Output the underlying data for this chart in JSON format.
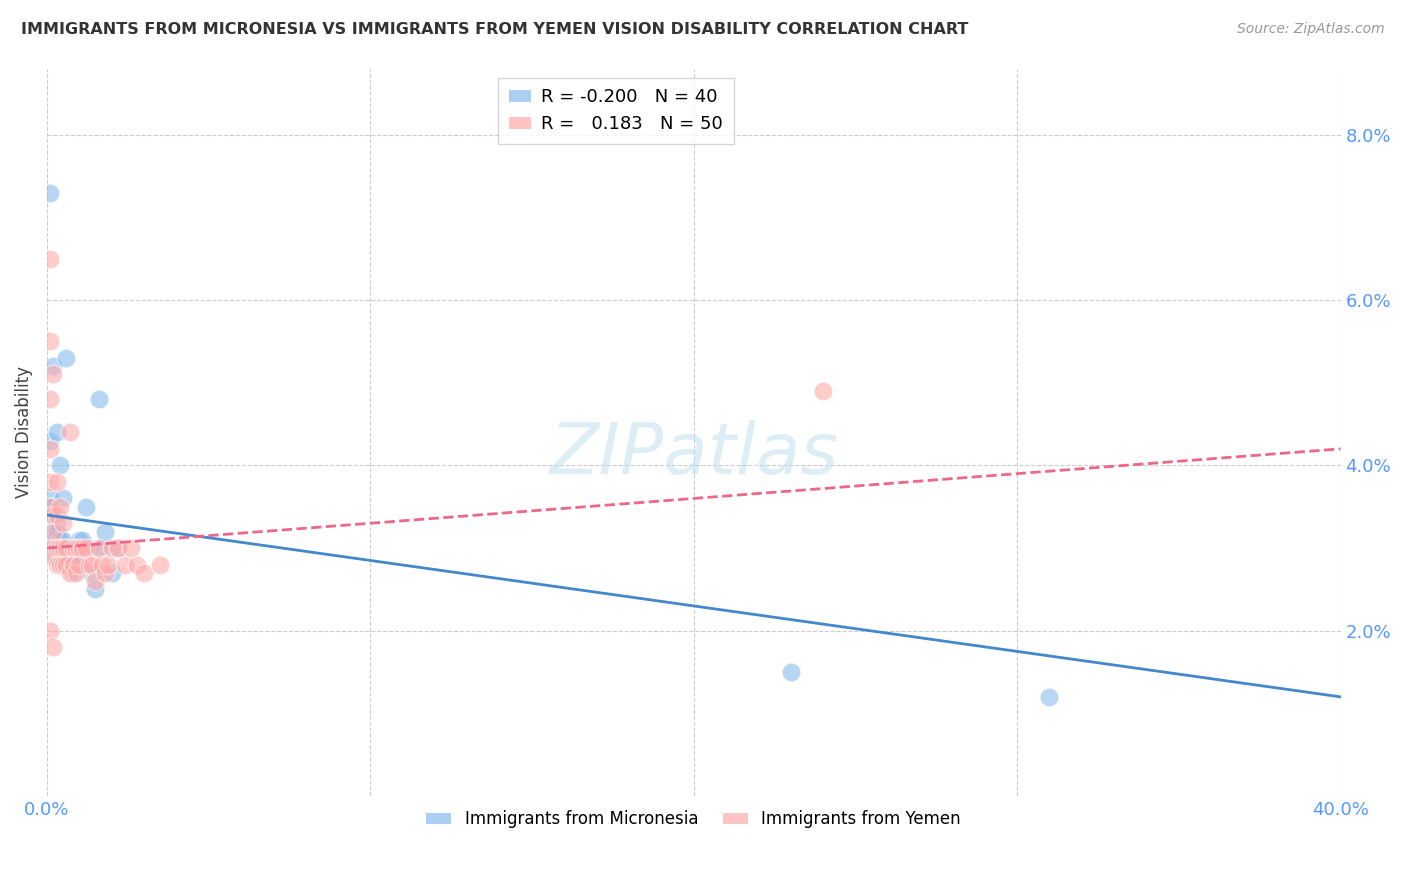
{
  "title": "IMMIGRANTS FROM MICRONESIA VS IMMIGRANTS FROM YEMEN VISION DISABILITY CORRELATION CHART",
  "source": "Source: ZipAtlas.com",
  "ylabel": "Vision Disability",
  "legend_micronesia": "Immigrants from Micronesia",
  "legend_yemen": "Immigrants from Yemen",
  "R_micronesia": "-0.200",
  "N_micronesia": "40",
  "R_yemen": "0.183",
  "N_yemen": "50",
  "color_micronesia": "#88BBEE",
  "color_yemen": "#FFAAAA",
  "trendline_color_micronesia": "#4488CC",
  "trendline_color_yemen": "#EE6688",
  "axis_color": "#5599FF",
  "grid_color": "#CCCCCC",
  "title_color": "#333333",
  "source_color": "#999999",
  "watermark_color": "#BBDDEE",
  "xlim": [
    0.0,
    0.4
  ],
  "ylim": [
    0.0,
    0.088
  ],
  "yticks": [
    0.02,
    0.04,
    0.06,
    0.08
  ],
  "ytick_labels": [
    "2.0%",
    "4.0%",
    "6.0%",
    "8.0%"
  ],
  "xticks": [
    0.0,
    0.1,
    0.2,
    0.3,
    0.4
  ],
  "xtick_labels": [
    "0.0%",
    "",
    "",
    "",
    "40.0%"
  ],
  "trendline_mic_x0": 0.0,
  "trendline_mic_y0": 0.034,
  "trendline_mic_x1": 0.4,
  "trendline_mic_y1": 0.012,
  "trendline_yem_x0": 0.0,
  "trendline_yem_y0": 0.03,
  "trendline_yem_x1": 0.4,
  "trendline_yem_y1": 0.042,
  "micronesia_x": [
    0.001,
    0.001,
    0.001,
    0.001,
    0.001,
    0.002,
    0.002,
    0.002,
    0.002,
    0.002,
    0.003,
    0.003,
    0.003,
    0.003,
    0.004,
    0.004,
    0.004,
    0.005,
    0.005,
    0.006,
    0.006,
    0.006,
    0.007,
    0.007,
    0.008,
    0.008,
    0.009,
    0.01,
    0.011,
    0.012,
    0.013,
    0.014,
    0.015,
    0.016,
    0.017,
    0.018,
    0.02,
    0.022,
    0.23,
    0.31
  ],
  "micronesia_y": [
    0.073,
    0.043,
    0.036,
    0.035,
    0.032,
    0.052,
    0.034,
    0.031,
    0.03,
    0.029,
    0.044,
    0.033,
    0.032,
    0.03,
    0.04,
    0.031,
    0.03,
    0.036,
    0.031,
    0.053,
    0.03,
    0.028,
    0.03,
    0.028,
    0.029,
    0.027,
    0.029,
    0.031,
    0.031,
    0.035,
    0.03,
    0.027,
    0.025,
    0.048,
    0.03,
    0.032,
    0.027,
    0.03,
    0.015,
    0.012
  ],
  "yemen_x": [
    0.001,
    0.001,
    0.001,
    0.001,
    0.001,
    0.001,
    0.002,
    0.002,
    0.002,
    0.002,
    0.002,
    0.003,
    0.003,
    0.003,
    0.003,
    0.004,
    0.004,
    0.004,
    0.005,
    0.005,
    0.005,
    0.006,
    0.006,
    0.007,
    0.007,
    0.008,
    0.008,
    0.009,
    0.009,
    0.01,
    0.01,
    0.011,
    0.012,
    0.013,
    0.014,
    0.015,
    0.016,
    0.017,
    0.018,
    0.019,
    0.02,
    0.022,
    0.024,
    0.026,
    0.028,
    0.03,
    0.035,
    0.24,
    0.001,
    0.002
  ],
  "yemen_y": [
    0.065,
    0.055,
    0.048,
    0.042,
    0.038,
    0.035,
    0.051,
    0.034,
    0.032,
    0.03,
    0.029,
    0.038,
    0.034,
    0.03,
    0.028,
    0.035,
    0.03,
    0.028,
    0.033,
    0.03,
    0.028,
    0.03,
    0.028,
    0.044,
    0.027,
    0.03,
    0.028,
    0.03,
    0.027,
    0.03,
    0.028,
    0.03,
    0.03,
    0.028,
    0.028,
    0.026,
    0.03,
    0.028,
    0.027,
    0.028,
    0.03,
    0.03,
    0.028,
    0.03,
    0.028,
    0.027,
    0.028,
    0.049,
    0.02,
    0.018
  ]
}
